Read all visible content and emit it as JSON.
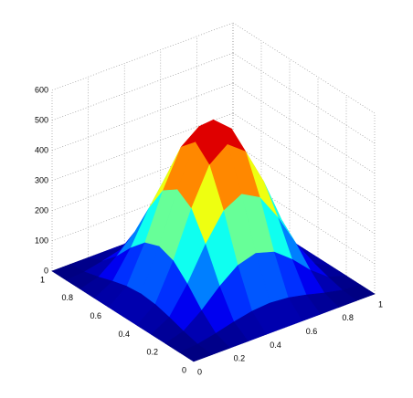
{
  "chart_data": {
    "type": "surface",
    "colormap": "jet",
    "grid": true,
    "x": [
      0,
      0.1,
      0.2,
      0.3,
      0.4,
      0.5,
      0.6,
      0.7,
      0.8,
      0.9,
      1
    ],
    "y": [
      0,
      0.1,
      0.2,
      0.3,
      0.4,
      0.5,
      0.6,
      0.7,
      0.8,
      0.9,
      1
    ],
    "z": [
      [
        0,
        0,
        0,
        0,
        0,
        0,
        0,
        0,
        0,
        0,
        0
      ],
      [
        0,
        5,
        18,
        34,
        47,
        52,
        47,
        34,
        18,
        5,
        0
      ],
      [
        0,
        18,
        64,
        122,
        169,
        187,
        169,
        122,
        64,
        18,
        0
      ],
      [
        0,
        34,
        122,
        231,
        320,
        353,
        320,
        231,
        122,
        34,
        0
      ],
      [
        0,
        47,
        169,
        320,
        442,
        488,
        442,
        320,
        169,
        47,
        0
      ],
      [
        0,
        52,
        187,
        353,
        488,
        540,
        488,
        353,
        187,
        52,
        0
      ],
      [
        0,
        47,
        169,
        320,
        442,
        488,
        442,
        320,
        169,
        47,
        0
      ],
      [
        0,
        34,
        122,
        231,
        320,
        353,
        320,
        231,
        122,
        34,
        0
      ],
      [
        0,
        18,
        64,
        122,
        169,
        187,
        169,
        122,
        64,
        18,
        0
      ],
      [
        0,
        5,
        18,
        34,
        47,
        52,
        47,
        34,
        18,
        5,
        0
      ],
      [
        0,
        0,
        0,
        0,
        0,
        0,
        0,
        0,
        0,
        0,
        0
      ]
    ],
    "xlim": [
      0,
      1
    ],
    "ylim": [
      0,
      1
    ],
    "zlim": [
      0,
      600
    ],
    "xticks": [
      0,
      0.2,
      0.4,
      0.6,
      0.8,
      1
    ],
    "yticks": [
      0,
      0.2,
      0.4,
      0.6,
      0.8,
      1
    ],
    "zticks": [
      0,
      100,
      200,
      300,
      400,
      500,
      600
    ]
  }
}
